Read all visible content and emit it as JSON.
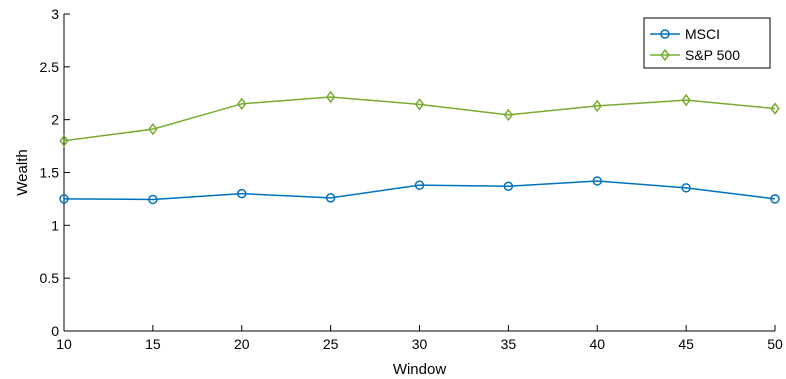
{
  "chart_data": {
    "type": "line",
    "xlabel": "Window",
    "ylabel": "Wealth",
    "x": [
      10,
      15,
      20,
      25,
      30,
      35,
      40,
      45,
      50
    ],
    "xlim": [
      10,
      50
    ],
    "ylim": [
      0,
      3
    ],
    "xticks": [
      "10",
      "15",
      "20",
      "25",
      "30",
      "35",
      "40",
      "45",
      "50"
    ],
    "yticks": [
      "0",
      "0.5",
      "1",
      "1.5",
      "2",
      "2.5",
      "3"
    ],
    "grid": false,
    "legend_position": "top-right",
    "series": [
      {
        "name": "MSCI",
        "color": "#0072BD",
        "marker": "circle",
        "values": [
          1.25,
          1.245,
          1.3,
          1.26,
          1.38,
          1.37,
          1.42,
          1.355,
          1.25
        ]
      },
      {
        "name": "S&P 500",
        "color": "#77AC30",
        "marker": "diamond",
        "values": [
          1.8,
          1.91,
          2.15,
          2.215,
          2.145,
          2.045,
          2.13,
          2.185,
          2.105
        ]
      }
    ]
  }
}
